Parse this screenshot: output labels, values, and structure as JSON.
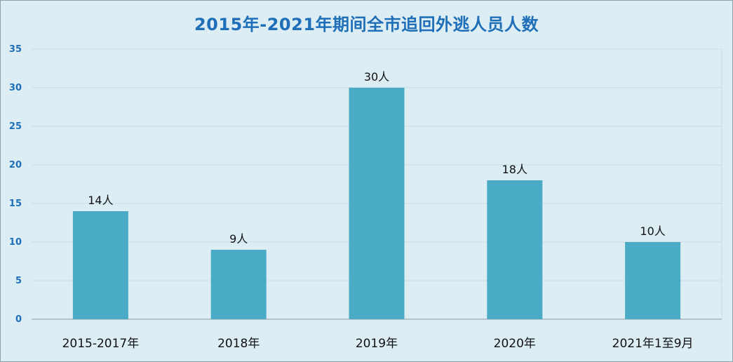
{
  "chart_data": {
    "type": "bar",
    "title": "2015年-2021年期间全市追回外逃人员人数",
    "categories": [
      "2015-2017年",
      "2018年",
      "2019年",
      "2020年",
      "2021年1至9月"
    ],
    "values": [
      14,
      9,
      30,
      18,
      10
    ],
    "data_labels": [
      "14人",
      "9人",
      "30人",
      "18人",
      "10人"
    ],
    "ylim": [
      0,
      35
    ],
    "yticks": [
      0,
      5,
      10,
      15,
      20,
      25,
      30,
      35
    ],
    "grid": true,
    "bar_color": "#4aabc6",
    "xlabel": "",
    "ylabel": ""
  }
}
